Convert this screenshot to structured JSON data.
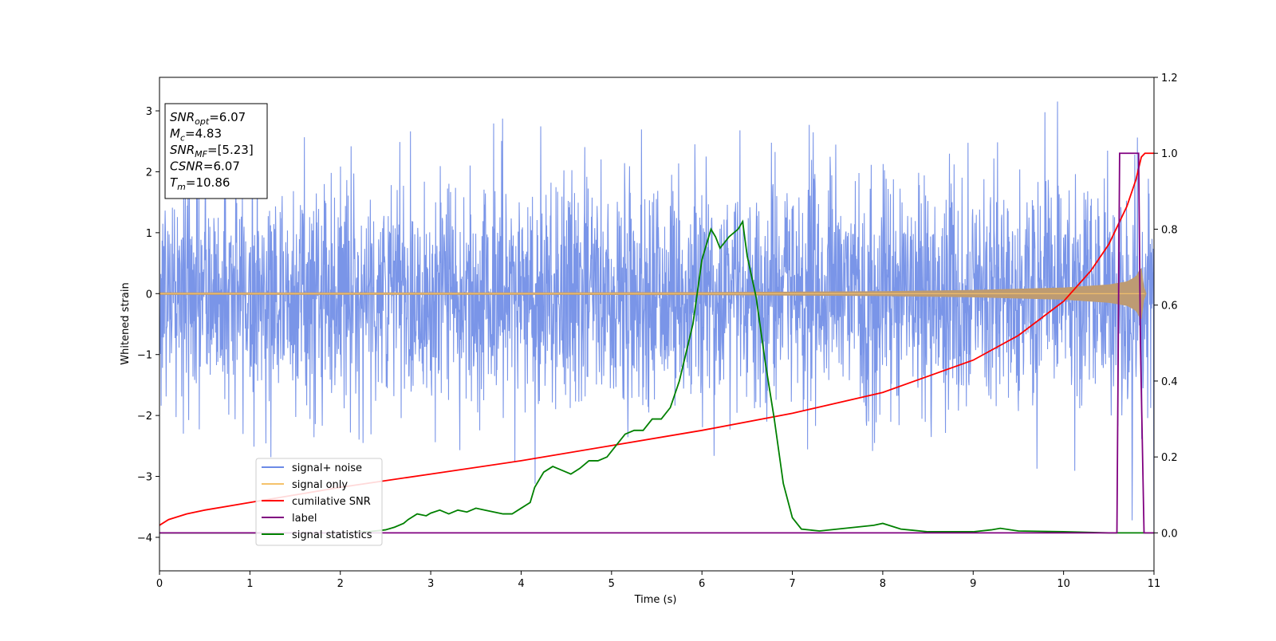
{
  "chart_data": {
    "type": "line",
    "xlabel": "Time (s)",
    "ylabel": "Whitened strain",
    "xlim": [
      0,
      11
    ],
    "ylim_left": [
      -4.55,
      3.55
    ],
    "ylim_right": [
      -0.1,
      1.2
    ],
    "x_ticks": [
      0,
      1,
      2,
      3,
      4,
      5,
      6,
      7,
      8,
      9,
      10,
      11
    ],
    "y_ticks_left": [
      -4,
      -3,
      -2,
      -1,
      0,
      1,
      2,
      3
    ],
    "y_ticks_right": [
      0.0,
      0.2,
      0.4,
      0.6,
      0.8,
      1.0,
      1.2
    ],
    "grid": false,
    "legend_position": "lower-left",
    "annotation": {
      "lines": [
        {
          "sym": "SNR",
          "sub": "opt",
          "value": "=6.07"
        },
        {
          "sym": "M",
          "sub": "c",
          "value": "=4.83"
        },
        {
          "sym": "SNR",
          "sub": "MF",
          "value": "=[5.23]"
        },
        {
          "sym": "CSNR",
          "sub": "",
          "value": "=6.07"
        },
        {
          "sym": "T",
          "sub": "m",
          "value": "=10.86"
        }
      ]
    },
    "colors": {
      "signal_noise": "#6b8ae6",
      "signal_only": "#f5c26b",
      "signal_only_fill": "#bd9b73",
      "cumulative_snr": "#ff0000",
      "label": "#800080",
      "signal_statistics": "#008000"
    },
    "series": [
      {
        "name": "signal+ noise",
        "axis": "left",
        "description_values": {
          "noise_sigma": 0.95,
          "envelope_min": -4.15,
          "envelope_max": 3.22
        }
      },
      {
        "name": "signal only",
        "axis": "left",
        "envelope": {
          "x": [
            0,
            2,
            4,
            6,
            8,
            9,
            10,
            10.5,
            10.7,
            10.8,
            10.86,
            10.9,
            11
          ],
          "amplitude": [
            0.02,
            0.02,
            0.02,
            0.025,
            0.04,
            0.06,
            0.1,
            0.15,
            0.2,
            0.28,
            0.45,
            0.0,
            0.0
          ]
        }
      },
      {
        "name": "cumilative SNR",
        "axis": "right",
        "x": [
          0,
          0.1,
          0.3,
          0.5,
          1,
          1.5,
          2,
          3,
          4,
          5,
          6,
          7,
          8,
          9,
          9.5,
          10,
          10.3,
          10.5,
          10.7,
          10.8,
          10.86,
          10.9,
          11
        ],
        "y": [
          0.02,
          0.035,
          0.05,
          0.06,
          0.08,
          0.1,
          0.12,
          0.155,
          0.19,
          0.23,
          0.27,
          0.315,
          0.37,
          0.455,
          0.52,
          0.61,
          0.69,
          0.76,
          0.86,
          0.93,
          0.99,
          1.0,
          1.0
        ]
      },
      {
        "name": "label",
        "axis": "right",
        "x": [
          0,
          10.59,
          10.62,
          10.66,
          10.83,
          10.85,
          10.89,
          11
        ],
        "y": [
          0,
          0,
          1,
          1,
          1,
          0.5,
          0,
          0
        ]
      },
      {
        "name": "signal statistics",
        "axis": "right",
        "x": [
          0,
          1,
          2,
          2.3,
          2.5,
          2.6,
          2.7,
          2.75,
          2.85,
          2.95,
          3.0,
          3.1,
          3.2,
          3.3,
          3.4,
          3.5,
          3.6,
          3.7,
          3.8,
          3.9,
          4.0,
          4.1,
          4.15,
          4.25,
          4.35,
          4.4,
          4.5,
          4.55,
          4.65,
          4.75,
          4.85,
          4.95,
          5.05,
          5.15,
          5.25,
          5.35,
          5.45,
          5.55,
          5.65,
          5.75,
          5.8,
          5.9,
          6.0,
          6.1,
          6.15,
          6.2,
          6.3,
          6.4,
          6.45,
          6.5,
          6.6,
          6.7,
          6.8,
          6.9,
          7.0,
          7.1,
          7.3,
          7.5,
          7.7,
          7.9,
          8.0,
          8.2,
          8.5,
          9.0,
          9.2,
          9.3,
          9.5,
          10.0,
          10.5,
          11
        ],
        "y": [
          0,
          0,
          0.0,
          0.003,
          0.008,
          0.015,
          0.025,
          0.035,
          0.05,
          0.045,
          0.052,
          0.06,
          0.05,
          0.06,
          0.055,
          0.065,
          0.06,
          0.055,
          0.05,
          0.05,
          0.065,
          0.08,
          0.12,
          0.16,
          0.175,
          0.17,
          0.16,
          0.155,
          0.17,
          0.19,
          0.19,
          0.2,
          0.23,
          0.26,
          0.27,
          0.27,
          0.3,
          0.3,
          0.33,
          0.4,
          0.45,
          0.55,
          0.72,
          0.8,
          0.78,
          0.75,
          0.78,
          0.8,
          0.82,
          0.73,
          0.62,
          0.45,
          0.3,
          0.13,
          0.04,
          0.01,
          0.005,
          0.01,
          0.015,
          0.02,
          0.025,
          0.01,
          0.003,
          0.003,
          0.008,
          0.012,
          0.005,
          0.003,
          0.0,
          0.0
        ]
      }
    ]
  }
}
